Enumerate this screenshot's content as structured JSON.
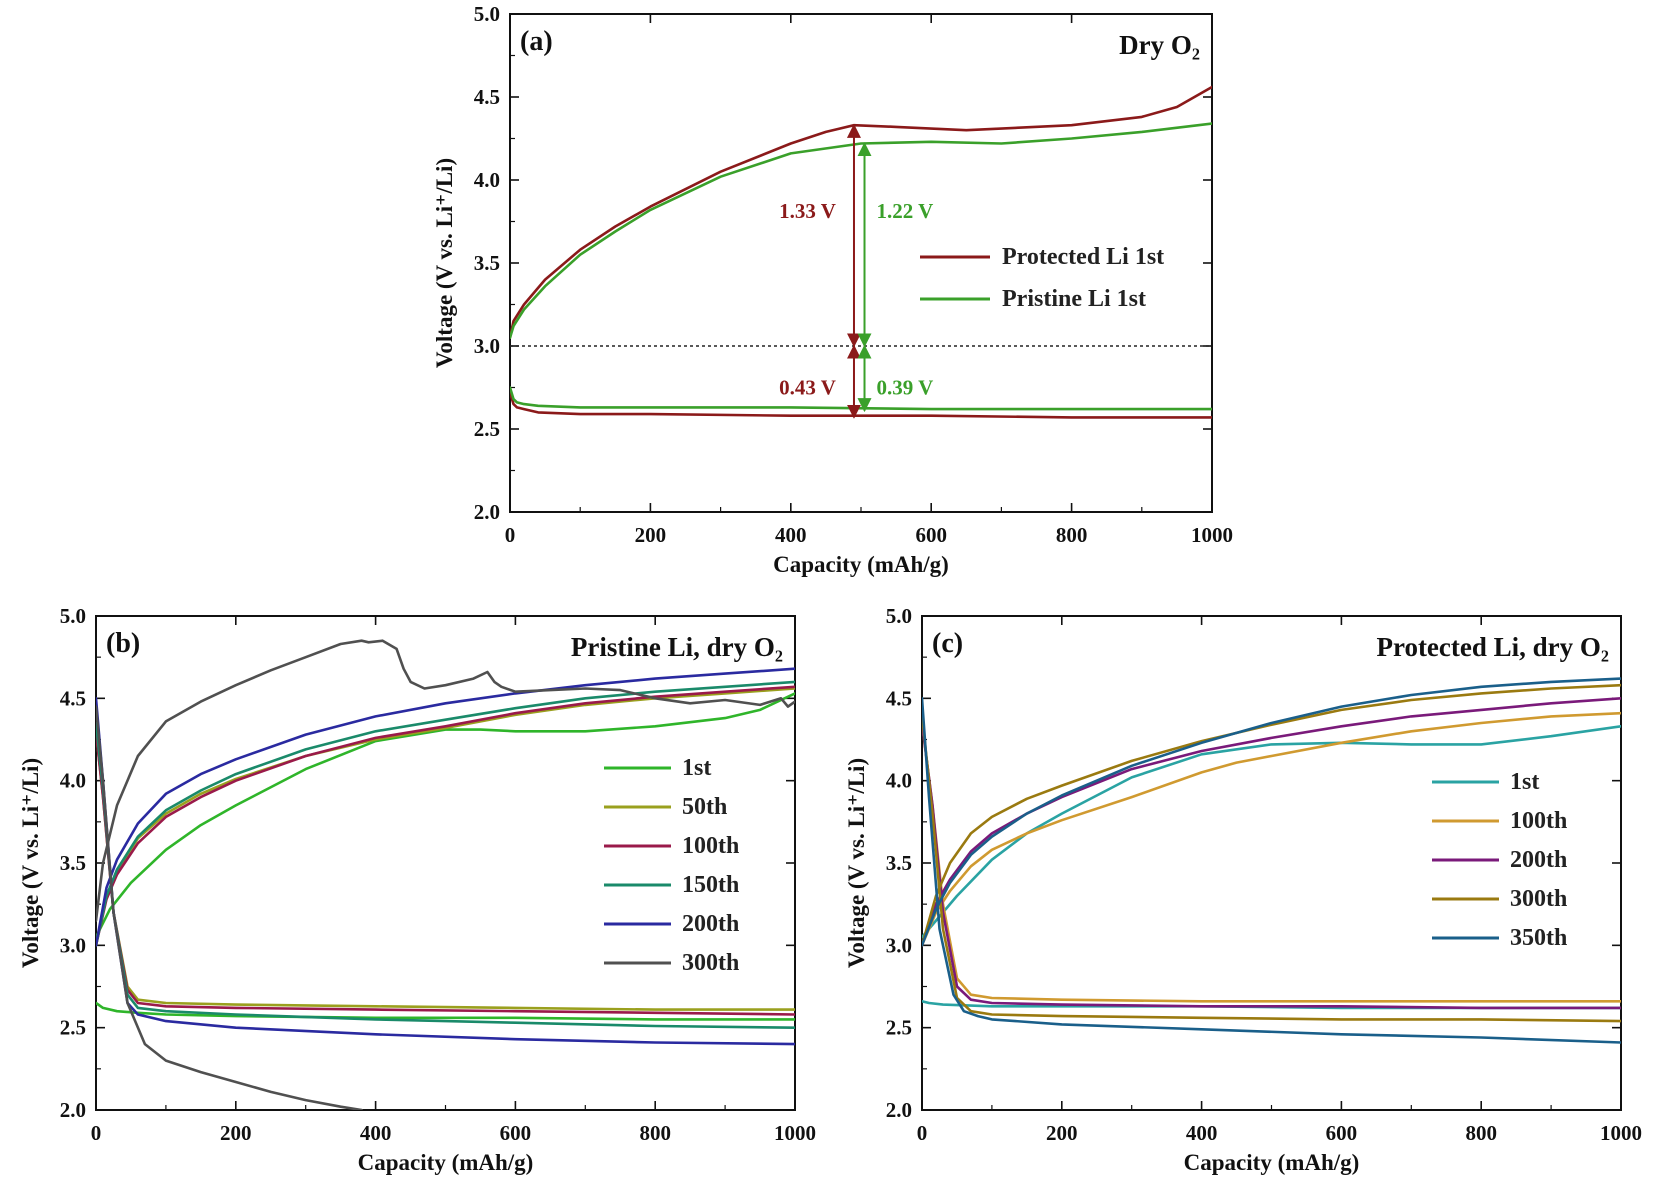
{
  "chart_data": [
    {
      "type": "line",
      "panel_label": "(a)",
      "title": "Dry O₂",
      "xlabel": "Capacity (mAh/g)",
      "ylabel": "Voltage (V vs. Li⁺/Li)",
      "xlim": [
        0,
        1000
      ],
      "ylim": [
        2.0,
        5.0
      ],
      "xticks": [
        0,
        200,
        400,
        600,
        800,
        1000
      ],
      "yticks": [
        2.0,
        2.5,
        3.0,
        3.5,
        4.0,
        4.5,
        5.0
      ],
      "legend_position": "center-right",
      "reference_line": {
        "y": 3.0,
        "style": "dotted"
      },
      "series": [
        {
          "name": "Protected Li 1st",
          "color": "#8b1a1a",
          "charge": {
            "x": [
              0,
              5,
              20,
              50,
              100,
              150,
              200,
              300,
              400,
              450,
              490,
              550,
              650,
              800,
              900,
              950,
              1000
            ],
            "y": [
              3.05,
              3.15,
              3.25,
              3.4,
              3.58,
              3.72,
              3.84,
              4.05,
              4.22,
              4.29,
              4.33,
              4.32,
              4.3,
              4.33,
              4.38,
              4.44,
              4.56
            ]
          },
          "discharge": {
            "x": [
              0,
              5,
              10,
              20,
              40,
              100,
              200,
              400,
              600,
              800,
              1000
            ],
            "y": [
              2.72,
              2.65,
              2.63,
              2.62,
              2.6,
              2.59,
              2.59,
              2.58,
              2.58,
              2.57,
              2.57
            ]
          }
        },
        {
          "name": "Pristine Li 1st",
          "color": "#3aa02a",
          "charge": {
            "x": [
              0,
              5,
              20,
              50,
              100,
              150,
              200,
              300,
              400,
              500,
              600,
              700,
              800,
              900,
              1000
            ],
            "y": [
              3.05,
              3.12,
              3.22,
              3.36,
              3.55,
              3.69,
              3.82,
              4.02,
              4.16,
              4.22,
              4.23,
              4.22,
              4.25,
              4.29,
              4.34
            ]
          },
          "discharge": {
            "x": [
              0,
              5,
              10,
              20,
              40,
              100,
              200,
              400,
              600,
              800,
              1000
            ],
            "y": [
              2.75,
              2.68,
              2.66,
              2.65,
              2.64,
              2.63,
              2.63,
              2.63,
              2.62,
              2.62,
              2.62
            ]
          }
        }
      ],
      "annotations": [
        {
          "text": "1.33 V",
          "color": "#8b1a1a",
          "x": 490,
          "from": 3.0,
          "to": 4.33
        },
        {
          "text": "1.22 V",
          "color": "#3aa02a",
          "x": 505,
          "from": 3.0,
          "to": 4.22
        },
        {
          "text": "0.43 V",
          "color": "#8b1a1a",
          "x": 490,
          "from": 2.57,
          "to": 3.0
        },
        {
          "text": "0.39 V",
          "color": "#3aa02a",
          "x": 505,
          "from": 2.61,
          "to": 3.0
        }
      ]
    },
    {
      "type": "line",
      "panel_label": "(b)",
      "title": "Pristine Li, dry O₂",
      "xlabel": "Capacity (mAh/g)",
      "ylabel": "Voltage (V vs. Li⁺/Li)",
      "xlim": [
        0,
        1000
      ],
      "ylim": [
        2.0,
        5.0
      ],
      "xticks": [
        0,
        200,
        400,
        600,
        800,
        1000
      ],
      "yticks": [
        2.0,
        2.5,
        3.0,
        3.5,
        4.0,
        4.5,
        5.0
      ],
      "legend_position": "center-right",
      "series": [
        {
          "name": "1st",
          "color": "#2fb52a",
          "charge": {
            "x": [
              0,
              20,
              50,
              100,
              150,
              200,
              300,
              400,
              500,
              550,
              600,
              700,
              800,
              900,
              950,
              1000
            ],
            "y": [
              3.05,
              3.22,
              3.38,
              3.58,
              3.73,
              3.85,
              4.07,
              4.24,
              4.31,
              4.31,
              4.3,
              4.3,
              4.33,
              4.38,
              4.43,
              4.53
            ]
          },
          "discharge": {
            "x": [
              0,
              10,
              30,
              60,
              100,
              200,
              400,
              600,
              800,
              1000
            ],
            "y": [
              2.65,
              2.62,
              2.6,
              2.59,
              2.58,
              2.57,
              2.56,
              2.56,
              2.55,
              2.55
            ]
          }
        },
        {
          "name": "50th",
          "color": "#9aa01e",
          "charge": {
            "x": [
              0,
              15,
              30,
              60,
              100,
              150,
              200,
              300,
              400,
              500,
              600,
              700,
              800,
              900,
              1000
            ],
            "y": [
              3.0,
              3.3,
              3.45,
              3.65,
              3.8,
              3.92,
              4.01,
              4.15,
              4.25,
              4.32,
              4.4,
              4.46,
              4.5,
              4.53,
              4.56
            ]
          },
          "discharge": {
            "x": [
              0,
              10,
              25,
              45,
              60,
              100,
              200,
              400,
              600,
              800,
              1000
            ],
            "y": [
              4.3,
              3.9,
              3.2,
              2.75,
              2.67,
              2.65,
              2.64,
              2.63,
              2.62,
              2.61,
              2.61
            ]
          }
        },
        {
          "name": "100th",
          "color": "#9a1a4a",
          "charge": {
            "x": [
              0,
              15,
              30,
              60,
              100,
              150,
              200,
              300,
              400,
              500,
              600,
              700,
              800,
              900,
              1000
            ],
            "y": [
              3.0,
              3.28,
              3.43,
              3.62,
              3.78,
              3.9,
              4.0,
              4.15,
              4.26,
              4.33,
              4.41,
              4.47,
              4.51,
              4.54,
              4.57
            ]
          },
          "discharge": {
            "x": [
              0,
              10,
              25,
              45,
              60,
              100,
              200,
              400,
              600,
              800,
              1000
            ],
            "y": [
              4.3,
              3.9,
              3.2,
              2.73,
              2.65,
              2.63,
              2.62,
              2.61,
              2.6,
              2.59,
              2.58
            ]
          }
        },
        {
          "name": "150th",
          "color": "#1a8a6a",
          "charge": {
            "x": [
              0,
              15,
              30,
              60,
              100,
              150,
              200,
              300,
              400,
              500,
              600,
              700,
              800,
              900,
              1000
            ],
            "y": [
              3.0,
              3.3,
              3.46,
              3.66,
              3.82,
              3.94,
              4.04,
              4.19,
              4.3,
              4.37,
              4.44,
              4.5,
              4.54,
              4.57,
              4.6
            ]
          },
          "discharge": {
            "x": [
              0,
              10,
              25,
              45,
              60,
              100,
              200,
              400,
              600,
              800,
              1000
            ],
            "y": [
              4.35,
              3.95,
              3.2,
              2.7,
              2.62,
              2.6,
              2.58,
              2.55,
              2.53,
              2.51,
              2.5
            ]
          }
        },
        {
          "name": "200th",
          "color": "#2a2aa0",
          "charge": {
            "x": [
              0,
              15,
              30,
              60,
              100,
              150,
              200,
              300,
              400,
              500,
              600,
              700,
              800,
              900,
              1000
            ],
            "y": [
              3.0,
              3.35,
              3.52,
              3.74,
              3.92,
              4.04,
              4.13,
              4.28,
              4.39,
              4.47,
              4.53,
              4.58,
              4.62,
              4.65,
              4.68
            ]
          },
          "discharge": {
            "x": [
              0,
              10,
              25,
              45,
              60,
              100,
              200,
              400,
              600,
              800,
              1000
            ],
            "y": [
              4.5,
              4.0,
              3.2,
              2.65,
              2.58,
              2.54,
              2.5,
              2.46,
              2.43,
              2.41,
              2.4
            ]
          }
        },
        {
          "name": "300th",
          "color": "#505050",
          "charge": {
            "x": [
              0,
              10,
              30,
              60,
              100,
              150,
              200,
              250,
              300,
              350,
              380,
              390,
              410,
              430,
              440,
              450,
              470,
              500,
              540,
              560,
              570,
              580,
              600,
              650,
              700,
              750,
              800,
              850,
              900,
              950,
              980,
              990,
              1000
            ],
            "y": [
              3.15,
              3.5,
              3.85,
              4.15,
              4.36,
              4.48,
              4.58,
              4.67,
              4.75,
              4.83,
              4.85,
              4.84,
              4.85,
              4.8,
              4.68,
              4.6,
              4.56,
              4.58,
              4.62,
              4.66,
              4.6,
              4.57,
              4.54,
              4.55,
              4.56,
              4.55,
              4.5,
              4.47,
              4.49,
              4.46,
              4.5,
              4.45,
              4.48
            ]
          },
          "discharge": {
            "x": [
              0,
              10,
              25,
              45,
              70,
              100,
              150,
              200,
              250,
              300,
              350,
              380
            ],
            "y": [
              4.45,
              4.0,
              3.2,
              2.65,
              2.4,
              2.3,
              2.23,
              2.17,
              2.11,
              2.06,
              2.02,
              2.0
            ]
          }
        }
      ]
    },
    {
      "type": "line",
      "panel_label": "(c)",
      "title": "Protected Li, dry O₂",
      "xlabel": "Capacity (mAh/g)",
      "ylabel": "Voltage (V vs. Li⁺/Li)",
      "xlim": [
        0,
        1000
      ],
      "ylim": [
        2.0,
        5.0
      ],
      "xticks": [
        0,
        200,
        400,
        600,
        800,
        1000
      ],
      "yticks": [
        2.0,
        2.5,
        3.0,
        3.5,
        4.0,
        4.5,
        5.0
      ],
      "legend_position": "center-right",
      "series": [
        {
          "name": "1st",
          "color": "#2aa3a3",
          "charge": {
            "x": [
              0,
              20,
              50,
              100,
              150,
              200,
              300,
              400,
              500,
              600,
              700,
              800,
              900,
              1000
            ],
            "y": [
              3.05,
              3.15,
              3.3,
              3.52,
              3.68,
              3.8,
              4.02,
              4.16,
              4.22,
              4.23,
              4.22,
              4.22,
              4.27,
              4.33
            ]
          },
          "discharge": {
            "x": [
              0,
              10,
              30,
              100,
              200,
              400,
              600,
              800,
              1000
            ],
            "y": [
              2.66,
              2.65,
              2.64,
              2.63,
              2.63,
              2.63,
              2.62,
              2.62,
              2.62
            ]
          }
        },
        {
          "name": "100th",
          "color": "#d09a30",
          "charge": {
            "x": [
              0,
              20,
              40,
              70,
              100,
              150,
              200,
              300,
              400,
              450,
              500,
              600,
              700,
              800,
              900,
              1000
            ],
            "y": [
              3.0,
              3.2,
              3.33,
              3.48,
              3.58,
              3.68,
              3.76,
              3.9,
              4.05,
              4.11,
              4.15,
              4.23,
              4.3,
              4.35,
              4.39,
              4.41
            ]
          },
          "discharge": {
            "x": [
              0,
              15,
              30,
              50,
              70,
              100,
              200,
              400,
              600,
              800,
              1000
            ],
            "y": [
              4.35,
              3.85,
              3.25,
              2.8,
              2.7,
              2.68,
              2.67,
              2.66,
              2.66,
              2.66,
              2.66
            ]
          }
        },
        {
          "name": "200th",
          "color": "#7a1a7a",
          "charge": {
            "x": [
              0,
              20,
              40,
              70,
              100,
              150,
              200,
              300,
              400,
              500,
              600,
              700,
              800,
              900,
              1000
            ],
            "y": [
              3.0,
              3.25,
              3.4,
              3.57,
              3.68,
              3.8,
              3.9,
              4.07,
              4.18,
              4.26,
              4.33,
              4.39,
              4.43,
              4.47,
              4.5
            ]
          },
          "discharge": {
            "x": [
              0,
              15,
              30,
              50,
              70,
              100,
              200,
              400,
              600,
              800,
              1000
            ],
            "y": [
              4.35,
              3.85,
              3.2,
              2.75,
              2.67,
              2.65,
              2.64,
              2.63,
              2.63,
              2.62,
              2.62
            ]
          }
        },
        {
          "name": "300th",
          "color": "#9a7a10",
          "charge": {
            "x": [
              0,
              20,
              40,
              70,
              100,
              150,
              200,
              300,
              400,
              500,
              600,
              700,
              800,
              900,
              1000
            ],
            "y": [
              3.0,
              3.3,
              3.5,
              3.68,
              3.78,
              3.89,
              3.97,
              4.12,
              4.24,
              4.34,
              4.43,
              4.49,
              4.53,
              4.56,
              4.58
            ]
          },
          "discharge": {
            "x": [
              0,
              15,
              30,
              50,
              70,
              100,
              200,
              400,
              600,
              800,
              1000
            ],
            "y": [
              4.4,
              3.8,
              3.1,
              2.68,
              2.6,
              2.58,
              2.57,
              2.56,
              2.55,
              2.55,
              2.54
            ]
          }
        },
        {
          "name": "350th",
          "color": "#1a5f8a",
          "charge": {
            "x": [
              0,
              20,
              40,
              70,
              100,
              150,
              200,
              300,
              400,
              500,
              600,
              700,
              800,
              900,
              1000
            ],
            "y": [
              3.0,
              3.22,
              3.38,
              3.55,
              3.66,
              3.8,
              3.91,
              4.09,
              4.23,
              4.35,
              4.45,
              4.52,
              4.57,
              4.6,
              4.62
            ]
          },
          "discharge": {
            "x": [
              0,
              10,
              25,
              45,
              60,
              80,
              100,
              200,
              400,
              600,
              800,
              1000
            ],
            "y": [
              4.5,
              3.9,
              3.1,
              2.7,
              2.6,
              2.57,
              2.55,
              2.52,
              2.49,
              2.46,
              2.44,
              2.41
            ]
          }
        }
      ]
    }
  ]
}
